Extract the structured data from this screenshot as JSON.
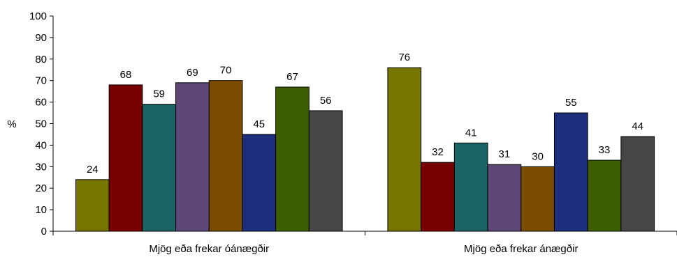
{
  "chart_data": {
    "type": "bar",
    "title": "",
    "xlabel": "",
    "ylabel": "%",
    "ylim": [
      0,
      100
    ],
    "yticks": [
      0,
      10,
      20,
      30,
      40,
      50,
      60,
      70,
      80,
      90,
      100
    ],
    "grid": false,
    "legend": "none",
    "categories": [
      "Mjög eða frekar óánægðir",
      "Mjög eða frekar ánægðir"
    ],
    "series": [
      {
        "color": "#757500",
        "values": [
          24,
          76
        ]
      },
      {
        "color": "#7a0000",
        "values": [
          68,
          32
        ]
      },
      {
        "color": "#1b6464",
        "values": [
          59,
          41
        ]
      },
      {
        "color": "#5f4777",
        "values": [
          69,
          31
        ]
      },
      {
        "color": "#7a4c00",
        "values": [
          70,
          30
        ]
      },
      {
        "color": "#1d2f7c",
        "values": [
          45,
          55
        ]
      },
      {
        "color": "#3d5e00",
        "values": [
          67,
          33
        ]
      },
      {
        "color": "#464646",
        "values": [
          56,
          44
        ]
      }
    ]
  }
}
